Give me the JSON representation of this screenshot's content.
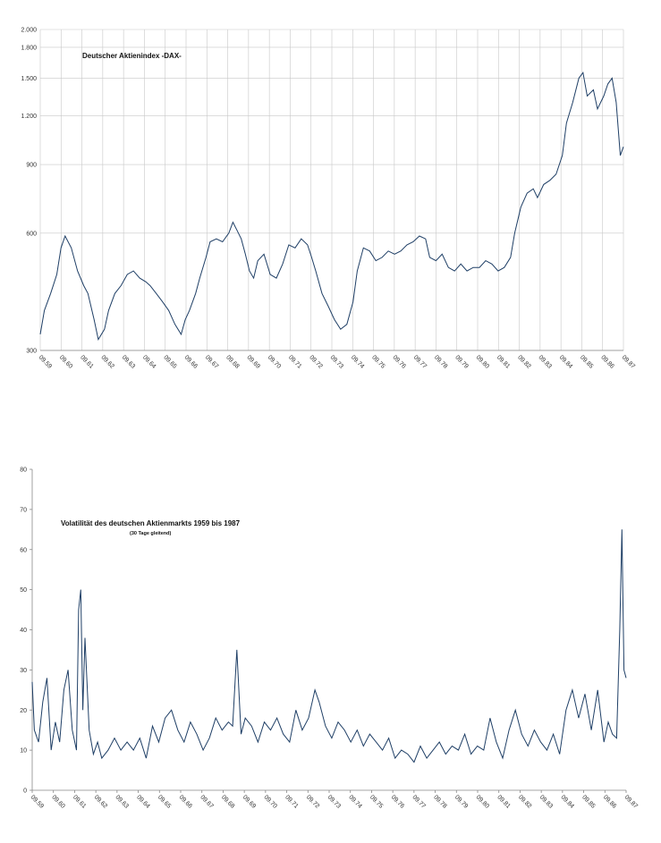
{
  "colors": {
    "series": "#1f3f66",
    "grid": "#c8c8c8",
    "axis": "#888888"
  },
  "chart_data": [
    {
      "type": "line",
      "title": "Deutscher Aktienindex -DAX-",
      "xlabel": "",
      "ylabel": "",
      "y_scale": "log",
      "ylim": [
        300,
        2000
      ],
      "y_ticks": [
        300,
        600,
        900,
        1200,
        1500,
        1800,
        2000
      ],
      "y_tick_labels": [
        "300",
        "600",
        "900",
        "1.200",
        "1.500",
        "1.800",
        "2.000"
      ],
      "x_tick_labels": [
        "09.59",
        "09.60",
        "09.61",
        "09.62",
        "09.63",
        "09.64",
        "09.65",
        "09.66",
        "09.67",
        "09.68",
        "09.69",
        "09.70",
        "09.71",
        "09.72",
        "09.73",
        "09.74",
        "09.75",
        "09.76",
        "09.77",
        "09.78",
        "09.79",
        "09.80",
        "09.81",
        "09.82",
        "09.83",
        "09.84",
        "09.85",
        "09.86",
        "09.87"
      ],
      "grid": "vertical and horizontal",
      "legend": "none",
      "series": [
        {
          "name": "",
          "x": [
            1959.7,
            1959.9,
            1960.2,
            1960.5,
            1960.7,
            1960.9,
            1961.2,
            1961.5,
            1961.8,
            1962.0,
            1962.3,
            1962.5,
            1962.8,
            1963.0,
            1963.3,
            1963.6,
            1963.9,
            1964.2,
            1964.5,
            1964.8,
            1965.0,
            1965.3,
            1965.6,
            1965.9,
            1966.2,
            1966.5,
            1966.7,
            1966.9,
            1967.2,
            1967.4,
            1967.7,
            1967.9,
            1968.2,
            1968.5,
            1968.8,
            1969.0,
            1969.2,
            1969.4,
            1969.6,
            1969.8,
            1970.0,
            1970.2,
            1970.5,
            1970.8,
            1971.1,
            1971.4,
            1971.7,
            1972.0,
            1972.3,
            1972.6,
            1972.8,
            1973.0,
            1973.3,
            1973.6,
            1973.9,
            1974.2,
            1974.5,
            1974.8,
            1975.0,
            1975.3,
            1975.6,
            1975.9,
            1976.2,
            1976.5,
            1976.8,
            1977.1,
            1977.4,
            1977.7,
            1978.0,
            1978.3,
            1978.5,
            1978.8,
            1979.1,
            1979.4,
            1979.7,
            1980.0,
            1980.3,
            1980.6,
            1980.9,
            1981.2,
            1981.5,
            1981.8,
            1982.1,
            1982.4,
            1982.6,
            1982.9,
            1983.2,
            1983.5,
            1983.7,
            1984.0,
            1984.3,
            1984.6,
            1984.9,
            1985.1,
            1985.4,
            1985.7,
            1985.9,
            1986.1,
            1986.4,
            1986.6,
            1986.9,
            1987.1,
            1987.3,
            1987.5,
            1987.7,
            1987.85
          ],
          "y": [
            330,
            380,
            420,
            470,
            550,
            590,
            550,
            480,
            440,
            420,
            360,
            320,
            340,
            380,
            420,
            440,
            470,
            480,
            460,
            450,
            440,
            420,
            400,
            380,
            350,
            330,
            360,
            380,
            420,
            460,
            520,
            570,
            580,
            570,
            600,
            640,
            610,
            580,
            530,
            480,
            460,
            510,
            530,
            470,
            460,
            500,
            560,
            550,
            580,
            560,
            520,
            480,
            420,
            390,
            360,
            340,
            350,
            400,
            480,
            550,
            540,
            510,
            520,
            540,
            530,
            540,
            560,
            570,
            590,
            580,
            520,
            510,
            530,
            490,
            480,
            500,
            480,
            490,
            490,
            510,
            500,
            480,
            490,
            520,
            600,
            700,
            760,
            780,
            740,
            800,
            820,
            850,
            950,
            1150,
            1300,
            1500,
            1550,
            1350,
            1400,
            1250,
            1350,
            1450,
            1500,
            1300,
            950,
            1000
          ]
        }
      ]
    },
    {
      "type": "line",
      "title": "Volatilität des deutschen Aktienmarkts 1959 bis 1987",
      "subtitle": "(30 Tage gleitend)",
      "xlabel": "",
      "ylabel": "",
      "ylim": [
        0,
        80
      ],
      "y_ticks": [
        0,
        10,
        20,
        30,
        40,
        50,
        60,
        70,
        80
      ],
      "y_tick_labels": [
        "0",
        "10",
        "20",
        "30",
        "40",
        "50",
        "60",
        "70",
        "80"
      ],
      "x_tick_labels": [
        "09.59",
        "09.60",
        "09.61",
        "09.62",
        "09.63",
        "09.64",
        "09.65",
        "09.66",
        "09.67",
        "09.68",
        "09.69",
        "09.70",
        "09.71",
        "09.72",
        "09.73",
        "09.74",
        "09.75",
        "09.76",
        "09.77",
        "09.78",
        "09.79",
        "09.80",
        "09.81",
        "09.82",
        "09.83",
        "09.84",
        "09.85",
        "09.86",
        "09.87"
      ],
      "grid": "none",
      "legend": "none",
      "series": [
        {
          "name": "",
          "x": [
            1959.7,
            1959.8,
            1960.0,
            1960.2,
            1960.4,
            1960.6,
            1960.8,
            1961.0,
            1961.2,
            1961.4,
            1961.6,
            1961.8,
            1961.9,
            1962.0,
            1962.1,
            1962.2,
            1962.4,
            1962.6,
            1962.8,
            1963.0,
            1963.3,
            1963.6,
            1963.9,
            1964.2,
            1964.5,
            1964.8,
            1965.1,
            1965.4,
            1965.7,
            1966.0,
            1966.3,
            1966.6,
            1966.9,
            1967.2,
            1967.5,
            1967.8,
            1968.1,
            1968.4,
            1968.7,
            1969.0,
            1969.2,
            1969.4,
            1969.6,
            1969.8,
            1970.1,
            1970.4,
            1970.7,
            1971.0,
            1971.3,
            1971.6,
            1971.9,
            1972.2,
            1972.5,
            1972.8,
            1973.1,
            1973.3,
            1973.6,
            1973.9,
            1974.2,
            1974.5,
            1974.8,
            1975.1,
            1975.4,
            1975.7,
            1976.0,
            1976.3,
            1976.6,
            1976.9,
            1977.2,
            1977.5,
            1977.8,
            1978.1,
            1978.4,
            1978.7,
            1979.0,
            1979.3,
            1979.6,
            1979.9,
            1980.2,
            1980.5,
            1980.8,
            1981.1,
            1981.4,
            1981.7,
            1982.0,
            1982.3,
            1982.6,
            1982.9,
            1983.2,
            1983.5,
            1983.8,
            1984.1,
            1984.4,
            1984.7,
            1985.0,
            1985.3,
            1985.6,
            1985.9,
            1986.2,
            1986.5,
            1986.8,
            1987.0,
            1987.2,
            1987.4,
            1987.55,
            1987.65,
            1987.75,
            1987.85
          ],
          "y": [
            27,
            15,
            12,
            22,
            28,
            10,
            17,
            12,
            25,
            30,
            15,
            10,
            45,
            50,
            20,
            38,
            15,
            9,
            12,
            8,
            10,
            13,
            10,
            12,
            10,
            13,
            8,
            16,
            12,
            18,
            20,
            15,
            12,
            17,
            14,
            10,
            13,
            18,
            15,
            17,
            16,
            35,
            14,
            18,
            16,
            12,
            17,
            15,
            18,
            14,
            12,
            20,
            15,
            18,
            25,
            22,
            16,
            13,
            17,
            15,
            12,
            15,
            11,
            14,
            12,
            10,
            13,
            8,
            10,
            9,
            7,
            11,
            8,
            10,
            12,
            9,
            11,
            10,
            14,
            9,
            11,
            10,
            18,
            12,
            8,
            15,
            20,
            14,
            11,
            15,
            12,
            10,
            14,
            9,
            20,
            25,
            18,
            24,
            15,
            25,
            12,
            17,
            14,
            13,
            40,
            65,
            30,
            28
          ]
        }
      ]
    }
  ]
}
